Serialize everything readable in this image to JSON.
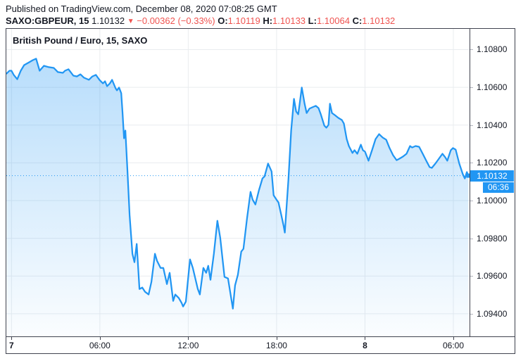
{
  "header": {
    "published_line": "Published on TradingView.com, December 08, 2020 07:08:25 GMT",
    "symbol": "SAXO:GBPEUR, 15",
    "last_price": "1.10132",
    "direction_icon": "▼",
    "change": "−0.00362 (−0.33%)",
    "ohlc": [
      {
        "label": "O:",
        "value": "1.10119"
      },
      {
        "label": "H:",
        "value": "1.10133"
      },
      {
        "label": "L:",
        "value": "1.10064"
      },
      {
        "label": "C:",
        "value": "1.10132"
      }
    ]
  },
  "chart": {
    "title": "British Pound / Euro, 15, SAXO",
    "price_label": "1.10132",
    "countdown": "06:36"
  },
  "colors": {
    "accent_blue": "#2196f3",
    "badge_blue": "#2196f3",
    "negative_red": "#ef5350",
    "text_dark": "#131722",
    "grid": "#e9ecef",
    "frame": "#40434f",
    "tick_gray": "#b2b5be"
  },
  "chart_data": {
    "type": "area",
    "title": "British Pound / Euro, 15, SAXO",
    "symbol": "SAXO:GBPEUR",
    "interval_minutes": 15,
    "x_unit": "hours since 2020-12-07 00:00 GMT",
    "xlim": [
      -0.35,
      31.1
    ],
    "ylim": [
      1.0928,
      1.1091
    ],
    "grid": true,
    "last_price": 1.10132,
    "countdown": "06:36",
    "x_ticks": [
      {
        "h": 0,
        "label": "7",
        "bold": true
      },
      {
        "h": 6,
        "label": "06:00",
        "bold": false
      },
      {
        "h": 12,
        "label": "12:00",
        "bold": false
      },
      {
        "h": 18,
        "label": "18:00",
        "bold": false
      },
      {
        "h": 24,
        "label": "8",
        "bold": true
      },
      {
        "h": 30,
        "label": "06:00",
        "bold": false
      }
    ],
    "y_ticks": [
      {
        "v": 1.108,
        "label": "1.10800"
      },
      {
        "v": 1.106,
        "label": "1.10600"
      },
      {
        "v": 1.104,
        "label": "1.10400"
      },
      {
        "v": 1.102,
        "label": "1.10200"
      },
      {
        "v": 1.1,
        "label": "1.10000"
      },
      {
        "v": 1.098,
        "label": "1.09800"
      },
      {
        "v": 1.096,
        "label": "1.09600"
      },
      {
        "v": 1.094,
        "label": "1.09400"
      }
    ],
    "series": [
      {
        "name": "GBPEUR",
        "points": [
          [
            -0.33,
            1.10673
          ],
          [
            -0.14,
            1.10688
          ],
          [
            0.0,
            1.10688
          ],
          [
            0.15,
            1.10666
          ],
          [
            0.39,
            1.10643
          ],
          [
            0.63,
            1.10688
          ],
          [
            0.86,
            1.10718
          ],
          [
            1.2,
            1.10733
          ],
          [
            1.44,
            1.10744
          ],
          [
            1.67,
            1.10752
          ],
          [
            1.91,
            1.10688
          ],
          [
            2.2,
            1.10714
          ],
          [
            2.53,
            1.10707
          ],
          [
            2.87,
            1.10703
          ],
          [
            3.15,
            1.10681
          ],
          [
            3.49,
            1.10677
          ],
          [
            3.63,
            1.10688
          ],
          [
            3.87,
            1.10696
          ],
          [
            4.2,
            1.10662
          ],
          [
            4.44,
            1.10658
          ],
          [
            4.68,
            1.10669
          ],
          [
            4.92,
            1.10651
          ],
          [
            5.25,
            1.1064
          ],
          [
            5.49,
            1.10658
          ],
          [
            5.73,
            1.10666
          ],
          [
            5.97,
            1.1064
          ],
          [
            6.21,
            1.10621
          ],
          [
            6.35,
            1.10632
          ],
          [
            6.49,
            1.10606
          ],
          [
            6.68,
            1.10621
          ],
          [
            6.83,
            1.1064
          ],
          [
            7.07,
            1.10595
          ],
          [
            7.16,
            1.10584
          ],
          [
            7.3,
            1.10599
          ],
          [
            7.45,
            1.10569
          ],
          [
            7.54,
            1.10464
          ],
          [
            7.64,
            1.1033
          ],
          [
            7.73,
            1.10371
          ],
          [
            7.88,
            1.10147
          ],
          [
            8.02,
            1.09923
          ],
          [
            8.21,
            1.09718
          ],
          [
            8.35,
            1.09673
          ],
          [
            8.5,
            1.0977
          ],
          [
            8.69,
            1.09531
          ],
          [
            8.88,
            1.09539
          ],
          [
            9.07,
            1.09516
          ],
          [
            9.31,
            1.09502
          ],
          [
            9.5,
            1.09569
          ],
          [
            9.74,
            1.09718
          ],
          [
            9.88,
            1.09681
          ],
          [
            10.12,
            1.09643
          ],
          [
            10.31,
            1.09643
          ],
          [
            10.55,
            1.09557
          ],
          [
            10.74,
            1.09617
          ],
          [
            10.98,
            1.09468
          ],
          [
            11.12,
            1.09502
          ],
          [
            11.36,
            1.09483
          ],
          [
            11.55,
            1.09457
          ],
          [
            11.65,
            1.09438
          ],
          [
            11.84,
            1.09464
          ],
          [
            12.12,
            1.09688
          ],
          [
            12.31,
            1.09643
          ],
          [
            12.65,
            1.09531
          ],
          [
            12.79,
            1.09502
          ],
          [
            13.03,
            1.09643
          ],
          [
            13.22,
            1.09617
          ],
          [
            13.36,
            1.09654
          ],
          [
            13.51,
            1.0958
          ],
          [
            13.74,
            1.09718
          ],
          [
            13.98,
            1.09893
          ],
          [
            14.17,
            1.09804
          ],
          [
            14.46,
            1.09595
          ],
          [
            14.7,
            1.09587
          ],
          [
            14.89,
            1.09494
          ],
          [
            15.03,
            1.09427
          ],
          [
            15.18,
            1.0955
          ],
          [
            15.37,
            1.09606
          ],
          [
            15.6,
            1.09729
          ],
          [
            15.75,
            1.09744
          ],
          [
            15.99,
            1.09905
          ],
          [
            16.23,
            1.10046
          ],
          [
            16.37,
            1.10005
          ],
          [
            16.56,
            1.09979
          ],
          [
            16.8,
            1.10054
          ],
          [
            17.04,
            1.10117
          ],
          [
            17.18,
            1.10128
          ],
          [
            17.42,
            1.10196
          ],
          [
            17.66,
            1.10154
          ],
          [
            17.8,
            1.10028
          ],
          [
            17.99,
            1.10005
          ],
          [
            18.13,
            1.0999
          ],
          [
            18.32,
            1.09923
          ],
          [
            18.47,
            1.09867
          ],
          [
            18.56,
            1.0983
          ],
          [
            18.8,
            1.1011
          ],
          [
            18.99,
            1.10371
          ],
          [
            19.18,
            1.10539
          ],
          [
            19.33,
            1.10472
          ],
          [
            19.47,
            1.10457
          ],
          [
            19.71,
            1.10599
          ],
          [
            19.9,
            1.10513
          ],
          [
            20.04,
            1.10464
          ],
          [
            20.23,
            1.10487
          ],
          [
            20.42,
            1.10494
          ],
          [
            20.66,
            1.10502
          ],
          [
            20.85,
            1.1049
          ],
          [
            21.0,
            1.10457
          ],
          [
            21.24,
            1.10397
          ],
          [
            21.38,
            1.10386
          ],
          [
            21.52,
            1.10401
          ],
          [
            21.62,
            1.10513
          ],
          [
            21.76,
            1.10464
          ],
          [
            21.95,
            1.10453
          ],
          [
            22.19,
            1.10438
          ],
          [
            22.43,
            1.10427
          ],
          [
            22.57,
            1.10408
          ],
          [
            22.76,
            1.10326
          ],
          [
            22.91,
            1.10289
          ],
          [
            23.15,
            1.10252
          ],
          [
            23.29,
            1.10267
          ],
          [
            23.48,
            1.10248
          ],
          [
            23.72,
            1.10296
          ],
          [
            23.86,
            1.10267
          ],
          [
            24.0,
            1.10259
          ],
          [
            24.24,
            1.10211
          ],
          [
            24.48,
            1.10267
          ],
          [
            24.72,
            1.10326
          ],
          [
            24.96,
            1.10352
          ],
          [
            25.2,
            1.10334
          ],
          [
            25.44,
            1.10322
          ],
          [
            25.67,
            1.10278
          ],
          [
            25.91,
            1.1024
          ],
          [
            26.15,
            1.10214
          ],
          [
            26.34,
            1.10222
          ],
          [
            26.58,
            1.10233
          ],
          [
            26.82,
            1.10248
          ],
          [
            27.06,
            1.10289
          ],
          [
            27.2,
            1.10281
          ],
          [
            27.44,
            1.10289
          ],
          [
            27.68,
            1.10285
          ],
          [
            27.92,
            1.10248
          ],
          [
            28.16,
            1.10211
          ],
          [
            28.39,
            1.10177
          ],
          [
            28.54,
            1.10173
          ],
          [
            28.78,
            1.10196
          ],
          [
            29.02,
            1.10222
          ],
          [
            29.26,
            1.10248
          ],
          [
            29.45,
            1.10229
          ],
          [
            29.59,
            1.10211
          ],
          [
            29.83,
            1.10267
          ],
          [
            29.97,
            1.10278
          ],
          [
            30.16,
            1.1027
          ],
          [
            30.4,
            1.10196
          ],
          [
            30.64,
            1.1014
          ],
          [
            30.78,
            1.10117
          ],
          [
            30.92,
            1.10151
          ],
          [
            31.02,
            1.10132
          ]
        ]
      }
    ]
  }
}
